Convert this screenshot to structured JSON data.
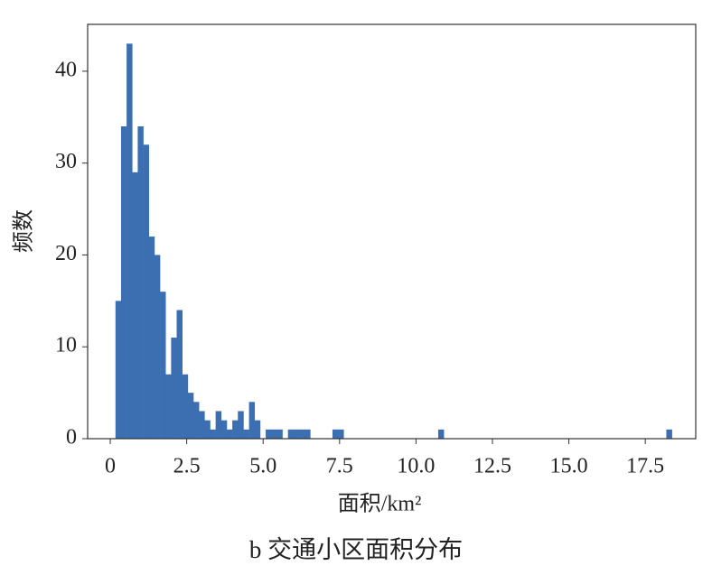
{
  "chart_data": {
    "type": "histogram",
    "title": "b 交通小区面积分布",
    "xlabel": "面积/km²",
    "ylabel": "频数",
    "color": "#3b6fb1",
    "bins": [
      0.17,
      0.352,
      0.534,
      0.716,
      0.898,
      1.08,
      1.262,
      1.444,
      1.626,
      1.808,
      1.99,
      2.172,
      2.354,
      2.536,
      2.718,
      2.9,
      3.082,
      3.264,
      3.446,
      3.628,
      3.81,
      3.992,
      4.174,
      4.356,
      4.538,
      4.72,
      4.902,
      5.084,
      5.266,
      5.448,
      5.63,
      5.812,
      5.994,
      6.176,
      6.358,
      6.54,
      6.722,
      6.904,
      7.086,
      7.268,
      7.45,
      7.632,
      7.814,
      7.996,
      8.178,
      8.36,
      8.542,
      8.724,
      8.906,
      9.088,
      9.27,
      9.452,
      9.634,
      9.816,
      9.998,
      10.18,
      10.362,
      10.544,
      10.726,
      10.908,
      11.09,
      11.272,
      11.454,
      11.636,
      11.818,
      12.0,
      12.182,
      12.364,
      12.546,
      12.728,
      12.91,
      13.092,
      13.274,
      13.456,
      13.638,
      13.82,
      14.002,
      14.184,
      14.366,
      14.548,
      14.73,
      14.912,
      15.094,
      15.276,
      15.458,
      15.64,
      15.822,
      16.004,
      16.186,
      16.368,
      16.55,
      16.732,
      16.914,
      17.096,
      17.278,
      17.46,
      17.642,
      17.824,
      18.006,
      18.188,
      18.37
    ],
    "values": [
      15,
      34,
      43,
      29,
      34,
      32,
      22,
      20,
      16,
      7,
      11,
      14,
      7,
      5,
      4,
      3,
      2,
      1,
      3,
      2,
      1,
      2,
      3,
      1,
      4,
      2,
      0,
      1,
      1,
      1,
      0,
      1,
      1,
      1,
      1,
      0,
      0,
      0,
      0,
      1,
      1,
      0,
      0,
      0,
      0,
      0,
      0,
      0,
      0,
      0,
      0,
      0,
      0,
      0,
      0,
      0,
      0,
      0,
      1,
      0,
      0,
      0,
      0,
      0,
      0,
      0,
      0,
      0,
      0,
      0,
      0,
      0,
      0,
      0,
      0,
      0,
      0,
      0,
      0,
      0,
      0,
      0,
      0,
      0,
      0,
      0,
      0,
      0,
      0,
      0,
      0,
      0,
      0,
      0,
      0,
      0,
      0,
      0,
      0,
      1
    ],
    "xlim": [
      -0.74,
      19.15
    ],
    "ylim": [
      0,
      45.1
    ],
    "xticks": [
      0,
      2.5,
      {
        "value": 5,
        "label": "5.0"
      },
      7.5,
      {
        "value": 10,
        "label": "10.0"
      },
      12.5,
      {
        "value": 15,
        "label": "15.0"
      },
      17.5
    ],
    "yticks": [
      0,
      10,
      20,
      30,
      40
    ]
  }
}
